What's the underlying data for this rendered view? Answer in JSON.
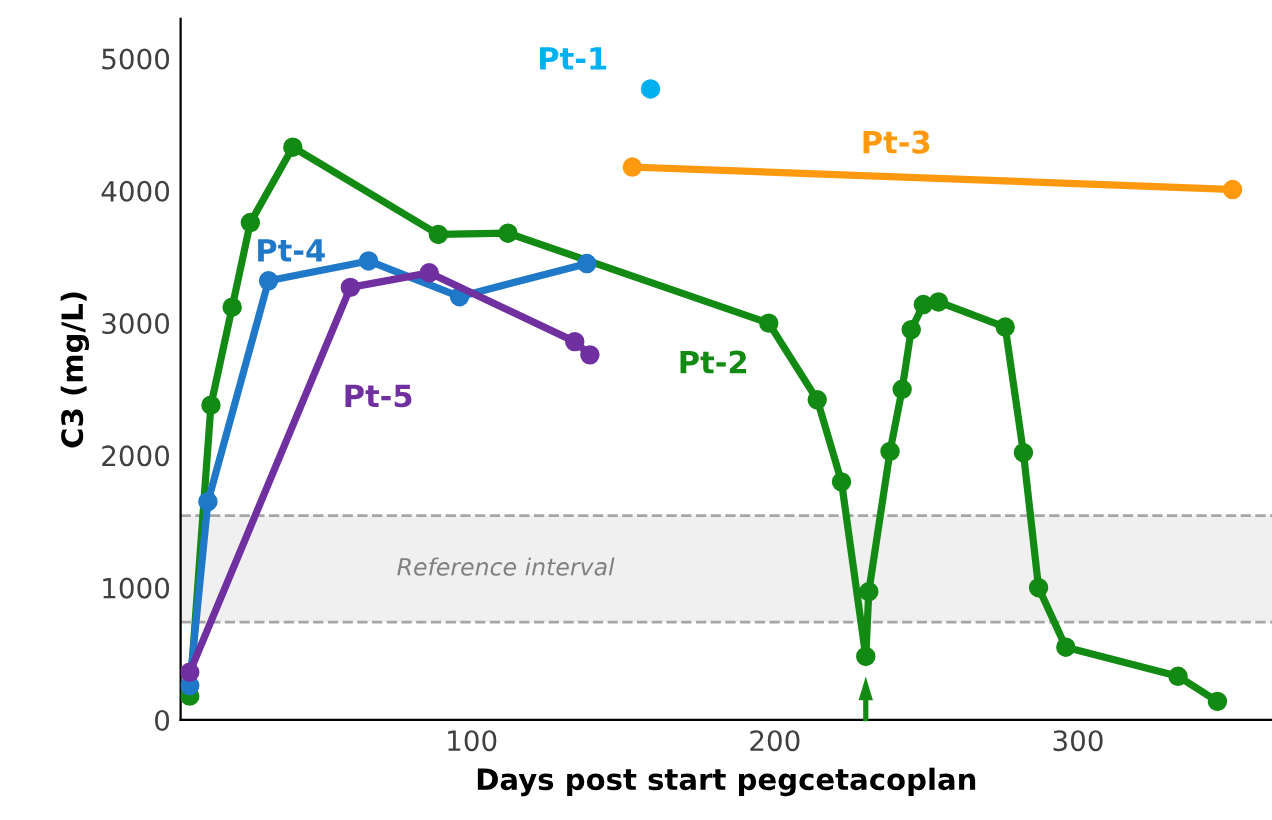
{
  "chart_data": {
    "type": "line",
    "xlabel": "Days post start pegcetacoplan",
    "ylabel": "C3 (mg/L)",
    "xlim": [
      4,
      364
    ],
    "ylim": [
      0,
      5300
    ],
    "xticks": [
      100,
      200,
      300
    ],
    "yticks": [
      0,
      1000,
      2000,
      3000,
      4000,
      5000
    ],
    "grid": false,
    "legend": false,
    "marker": "circle",
    "line_style": "solid",
    "series": [
      {
        "name": "Pt-1",
        "color": "#00b0f0",
        "type": "scatter",
        "x": [
          159
        ],
        "values": [
          4770
        ]
      },
      {
        "name": "Pt-2",
        "color": "#138a13",
        "x": [
          7,
          14,
          21,
          27,
          41,
          89,
          112,
          198,
          214,
          222,
          230,
          231,
          238,
          242,
          245,
          249,
          254,
          276,
          282,
          287,
          296,
          333,
          346
        ],
        "values": [
          180,
          2380,
          3120,
          3760,
          4330,
          3670,
          3680,
          3000,
          2420,
          1800,
          480,
          970,
          2030,
          2500,
          2950,
          3140,
          3160,
          2970,
          2020,
          1000,
          550,
          330,
          140
        ]
      },
      {
        "name": "Pt-3",
        "color": "#ff9a10",
        "x": [
          153,
          351
        ],
        "values": [
          4180,
          4010
        ]
      },
      {
        "name": "Pt-4",
        "color": "#1f78c8",
        "x": [
          7,
          13,
          33,
          66,
          96,
          138
        ],
        "values": [
          260,
          1650,
          3320,
          3470,
          3200,
          3450
        ]
      },
      {
        "name": "Pt-5",
        "color": "#7030a0",
        "x": [
          7,
          60,
          86,
          134,
          139
        ],
        "values": [
          360,
          3270,
          3380,
          2860,
          2760
        ]
      }
    ],
    "bands": [
      {
        "axis": "y",
        "from": 740,
        "to": 1545,
        "label": "Reference interval",
        "color": "#f0f0f0"
      }
    ],
    "ref_lines": [
      {
        "axis": "y",
        "value": 740,
        "color": "#a6a6a6",
        "line_style": "dashed"
      },
      {
        "axis": "y",
        "value": 1545,
        "color": "#a6a6a6",
        "line_style": "dashed"
      }
    ]
  }
}
